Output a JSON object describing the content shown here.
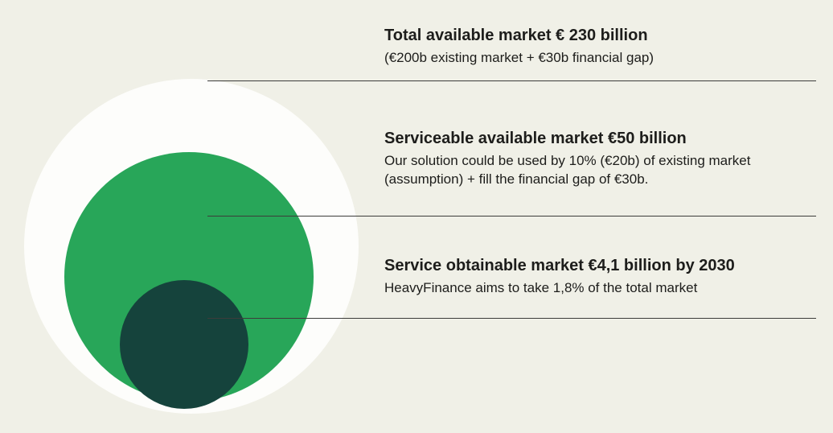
{
  "background_color": "#f0f0e7",
  "text_color": "#1d1d1b",
  "line_color": "#3c3c3a",
  "diagram": {
    "type": "nested-circles-market-sizing",
    "circles": [
      {
        "id": "total-available-market",
        "label": "Total available market",
        "value": "€ 230 billion",
        "color": "#fdfdfb"
      },
      {
        "id": "serviceable-available-market",
        "label": "Serviceable available market",
        "value": "€50 billion",
        "color": "#28a659"
      },
      {
        "id": "service-obtainable-market",
        "label": "Service obtainable market",
        "value": "€4,1 billion by 2030",
        "color": "#15433c"
      }
    ]
  },
  "labels": [
    {
      "title": "Total available market € 230 billion",
      "subtitle": "(€200b existing market + €30b financial gap)"
    },
    {
      "title": "Serviceable available market €50 billion",
      "subtitle": "Our solution could be used by 10% (€20b) of existing market (assumption) + fill the financial gap of  €30b."
    },
    {
      "title": "Service obtainable market €4,1 billion by 2030",
      "subtitle": "HeavyFinance aims to take 1,8% of the total market"
    }
  ]
}
